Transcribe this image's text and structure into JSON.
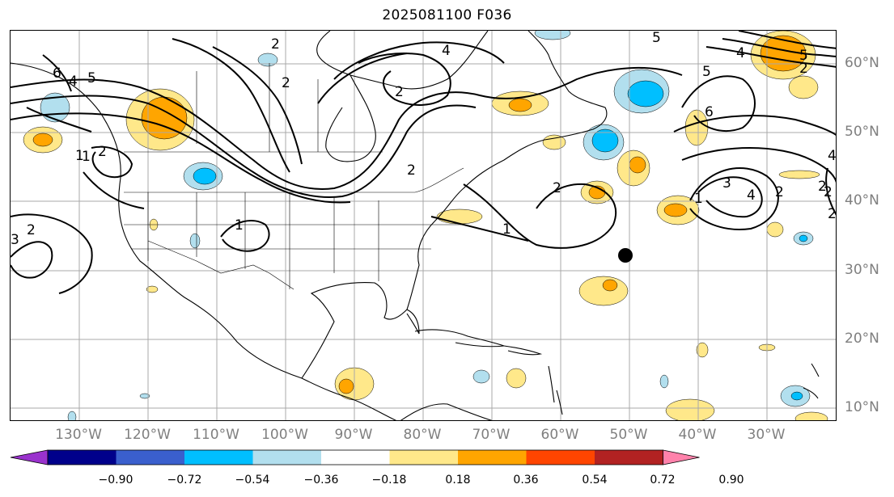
{
  "title": "2025081100 F036",
  "longitude_labels": [
    "130°W",
    "120°W",
    "110°W",
    "100°W",
    "90°W",
    "80°W",
    "70°W",
    "60°W",
    "50°W",
    "40°W",
    "30°W"
  ],
  "latitude_labels": [
    "60°N",
    "50°N",
    "40°N",
    "30°N",
    "20°N",
    "10°N"
  ],
  "colorbar": {
    "ticks": [
      "−0.90",
      "−0.72",
      "−0.54",
      "−0.36",
      "−0.18",
      "0.18",
      "0.36",
      "0.54",
      "0.72",
      "0.90"
    ],
    "colors": [
      "#9a32cd",
      "#00008b",
      "#3a5fcd",
      "#00bfff",
      "#b2dfee",
      "#ffffff",
      "#ffe88a",
      "#ffa500",
      "#ff4500",
      "#b22222",
      "#ff82ab"
    ]
  },
  "contour_labels": [
    "2",
    "6",
    "4",
    "5",
    "2",
    "4",
    "5",
    "4",
    "5",
    "2",
    "6",
    "5",
    "2",
    "1",
    "2",
    "1",
    "2",
    "1",
    "1",
    "2",
    "3",
    "4",
    "2",
    "2",
    "3",
    "1",
    "2",
    "4",
    "2",
    "2"
  ],
  "marker": "storm-position-dot"
}
